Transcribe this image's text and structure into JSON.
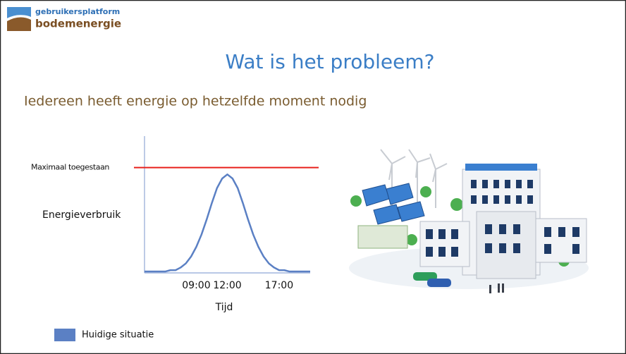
{
  "slide": {
    "logo": [
      "gebruikersplatform",
      "bodemenergie"
    ],
    "title": "Wat is het probleem?",
    "subtitle": "Iedereen heeft energie op hetzelfde moment nodig"
  },
  "chart_data": {
    "type": "line",
    "x": [
      4,
      4.5,
      5,
      5.5,
      6,
      6.5,
      7,
      7.5,
      8,
      8.5,
      9,
      9.5,
      10,
      10.5,
      11,
      11.5,
      12,
      12.5,
      13,
      13.5,
      14,
      14.5,
      15,
      15.5,
      16,
      16.5,
      17,
      17.5,
      18,
      18.5,
      19,
      19.5,
      20
    ],
    "series": [
      {
        "name": "Huidige situatie",
        "color": "#5b80c4",
        "values": [
          1,
          1,
          1,
          1,
          1,
          2,
          2,
          4,
          7,
          12,
          19,
          28,
          39,
          51,
          62,
          69,
          72,
          69,
          62,
          51,
          39,
          28,
          19,
          12,
          7,
          4,
          2,
          2,
          1,
          1,
          1,
          1,
          1
        ]
      }
    ],
    "xlim": [
      4,
      20
    ],
    "xticks": [
      {
        "value": 9,
        "label": "09:00"
      },
      {
        "value": 12,
        "label": "12:00"
      },
      {
        "value": 17,
        "label": "17:00"
      }
    ],
    "ylim": [
      0,
      100
    ],
    "x_label": "Tijd",
    "y_label": "Energieverbruik",
    "threshold": {
      "value": 77,
      "label": "Maximaal toegestaan",
      "color": "#e8201c"
    },
    "grid": false,
    "legend": "bottom-left"
  }
}
